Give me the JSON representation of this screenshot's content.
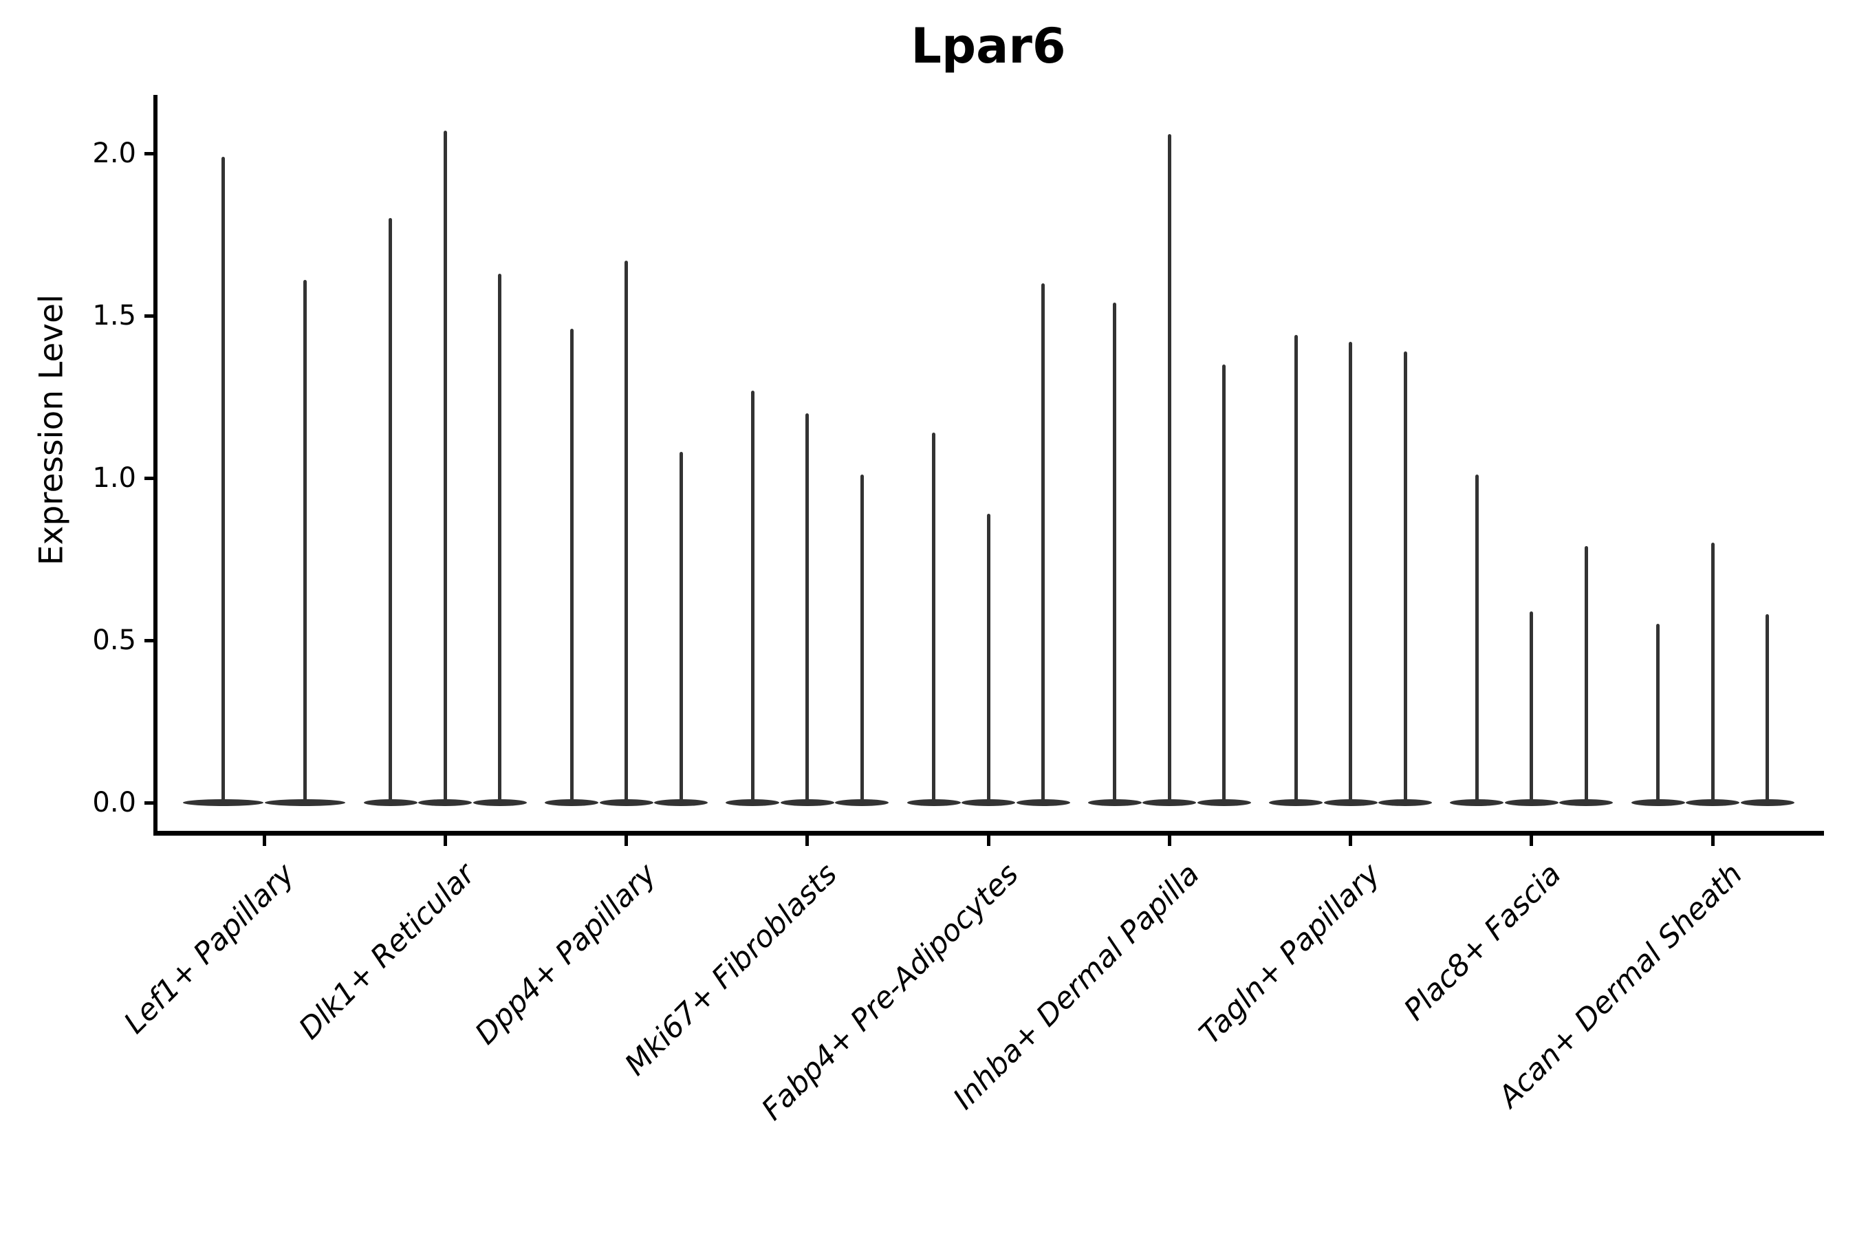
{
  "chart_data": {
    "type": "violin",
    "title": "Lpar6",
    "xlabel": "",
    "ylabel": "Expression Level",
    "ylim": [
      0,
      2.2
    ],
    "yticks": [
      0.0,
      0.5,
      1.0,
      1.5,
      2.0
    ],
    "ytick_labels": [
      "0.0",
      "0.5",
      "1.0",
      "1.5",
      "2.0"
    ],
    "grid": false,
    "legend": "none",
    "note": "Each cell-type group contains 2-3 very thin violins; nearly all density lies at expression 0 (flat lens-shaped base) with a thin tail reaching the listed maximum expression value.",
    "categories": [
      "Lef1+ Papillary",
      "Dlk1+ Reticular",
      "Dpp4+ Papillary",
      "Mki67+ Fibroblasts",
      "Fabp4+ Pre-Adipocytes",
      "Inhba+ Dermal Papilla",
      "Tagln+ Papillary",
      "Plac8+ Fascia",
      "Acan+ Dermal Sheath"
    ],
    "groups": [
      {
        "label": "Lef1+ Papillary",
        "violin_maxima": [
          1.99,
          1.61
        ]
      },
      {
        "label": "Dlk1+ Reticular",
        "violin_maxima": [
          1.8,
          2.07,
          1.63
        ]
      },
      {
        "label": "Dpp4+ Papillary",
        "violin_maxima": [
          1.46,
          1.67,
          1.08
        ]
      },
      {
        "label": "Mki67+ Fibroblasts",
        "violin_maxima": [
          1.27,
          1.2,
          1.01
        ]
      },
      {
        "label": "Fabp4+ Pre-Adipocytes",
        "violin_maxima": [
          1.14,
          0.89,
          1.6
        ]
      },
      {
        "label": "Inhba+ Dermal Papilla",
        "violin_maxima": [
          1.54,
          2.06,
          1.35
        ]
      },
      {
        "label": "Tagln+ Papillary",
        "violin_maxima": [
          1.44,
          1.42,
          1.39
        ]
      },
      {
        "label": "Plac8+ Fascia",
        "violin_maxima": [
          1.01,
          0.59,
          0.79
        ]
      },
      {
        "label": "Acan+ Dermal Sheath",
        "violin_maxima": [
          0.55,
          0.8,
          0.58
        ]
      }
    ],
    "violin_color": "#333333",
    "axis_color": "#000000"
  }
}
